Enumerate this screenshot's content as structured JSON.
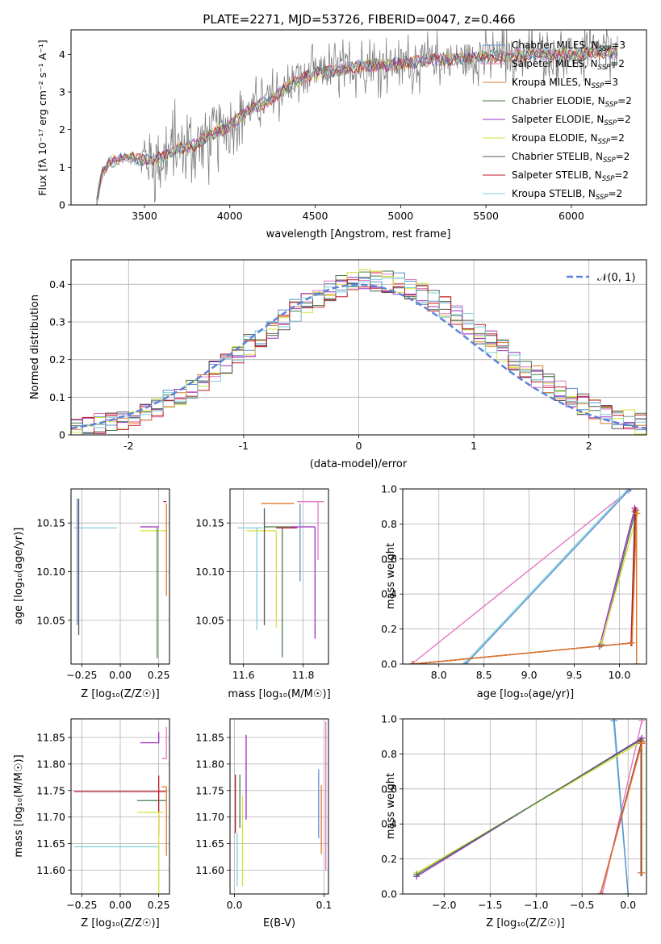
{
  "figure_title": "PLATE=2271, MJD=53726, FIBERID=0047, z=0.466",
  "chart_data": [
    {
      "id": "spectrum",
      "type": "line",
      "title": "PLATE=2271, MJD=53726, FIBERID=0047, z=0.466",
      "xlabel": "wavelength [Angstrom, rest frame]",
      "ylabel": "Flux [fλ 10⁻¹⁷ erg cm⁻² s⁻¹ A⁻¹]",
      "xlim": [
        3070,
        6440
      ],
      "ylim": [
        0,
        4.65
      ],
      "xticks": [
        3500,
        4000,
        4500,
        5000,
        5500,
        6000
      ],
      "yticks": [
        0,
        1,
        2,
        3,
        4
      ],
      "grid": false,
      "legend_position": "top-right",
      "data_series": {
        "name": "data",
        "color": "#808080",
        "x_start": 3220,
        "x_end": 6270,
        "points": 720
      },
      "model_series": [
        {
          "name": "Chabrier MILES, N_SSP=3",
          "color": "#5f8fd0"
        },
        {
          "name": "Salpeter MILES, N_SSP=2",
          "color": "#e377c2"
        },
        {
          "name": "Kroupa MILES, N_SSP=3",
          "color": "#e07a2b"
        },
        {
          "name": "Chabrier ELODIE, N_SSP=2",
          "color": "#4a7a4a"
        },
        {
          "name": "Salpeter ELODIE, N_SSP=2",
          "color": "#9b2fbf"
        },
        {
          "name": "Kroupa ELODIE, N_SSP=2",
          "color": "#d8e040"
        },
        {
          "name": "Chabrier STELIB, N_SSP=2",
          "color": "#555555"
        },
        {
          "name": "Salpeter STELIB, N_SSP=2",
          "color": "#c0182a"
        },
        {
          "name": "Kroupa STELIB, N_SSP=2",
          "color": "#7ecfd8"
        }
      ],
      "continuum": {
        "x": [
          3220,
          3250,
          3300,
          3400,
          3500,
          3600,
          3700,
          3800,
          3900,
          4000,
          4100,
          4200,
          4300,
          4400,
          4500,
          4600,
          4700,
          4800,
          4900,
          5000,
          5200,
          5400,
          5600,
          5800,
          6000,
          6200,
          6270
        ],
        "y": [
          0.0,
          0.85,
          1.15,
          1.25,
          1.2,
          1.25,
          1.5,
          1.6,
          1.9,
          2.1,
          2.5,
          2.7,
          3.0,
          3.3,
          3.5,
          3.55,
          3.65,
          3.7,
          3.7,
          3.75,
          3.85,
          3.9,
          3.95,
          4.0,
          4.0,
          4.05,
          4.05
        ]
      }
    },
    {
      "id": "residuals",
      "type": "histogram",
      "xlabel": "(data-model)/error",
      "ylabel": "Normed distribution",
      "xlim": [
        -2.5,
        2.5
      ],
      "ylim": [
        0,
        0.465
      ],
      "xticks": [
        -2,
        -1,
        0,
        1,
        2
      ],
      "yticks": [
        0.0,
        0.1,
        0.2,
        0.3,
        0.4
      ],
      "grid": true,
      "legend_position": "top-right",
      "gaussian": {
        "label": "𝒩(0, 1)",
        "mu": 0,
        "sigma": 1,
        "color": "#5b83d8"
      },
      "bin_width": 0.1,
      "envelope_sigma": 1.02,
      "envelope_shift": 0.12,
      "colors": [
        "#5f8fd0",
        "#e377c2",
        "#e07a2b",
        "#4a7a4a",
        "#9b2fbf",
        "#d8e040",
        "#555555",
        "#c0182a",
        "#7ecfd8"
      ]
    },
    {
      "id": "age-vs-Z",
      "type": "errorbar",
      "xlabel": "Z [log₁₀(Z/Z☉)]",
      "ylabel": "age  [log₁₀(age/yr)]",
      "xlim": [
        -0.32,
        0.32
      ],
      "ylim": [
        10.005,
        10.185
      ],
      "xticks": [
        -0.25,
        0.0,
        0.25
      ],
      "xtick_labels": [
        "−0.25",
        "0.00",
        "0.25"
      ],
      "yticks": [
        10.05,
        10.1,
        10.15
      ],
      "ytick_labels": [
        "10.05",
        "10.10",
        "10.15"
      ],
      "grid": true,
      "points": [
        {
          "color": "#7ecfd8",
          "x": -0.02,
          "xerr": [
            0.28,
            0.0
          ],
          "y": 10.145,
          "yerr": [
            0.0,
            0.0
          ]
        },
        {
          "color": "#5f8fd0",
          "x": -0.28,
          "xerr": [
            0.0,
            0.0
          ],
          "y": 10.145,
          "yerr": [
            0.1,
            0.03
          ]
        },
        {
          "color": "#555555",
          "x": -0.27,
          "xerr": [
            0.0,
            0.0
          ],
          "y": 10.145,
          "yerr": [
            0.11,
            0.03
          ]
        },
        {
          "color": "#9b2fbf",
          "x": 0.25,
          "xerr": [
            0.12,
            0.0
          ],
          "y": 10.146,
          "yerr": [
            0.0,
            0.0
          ]
        },
        {
          "color": "#d8e040",
          "x": 0.25,
          "xerr": [
            0.12,
            0.05
          ],
          "y": 10.142,
          "yerr": [
            0.0,
            0.0
          ]
        },
        {
          "color": "#4a7a4a",
          "x": 0.24,
          "xerr": [
            0.0,
            0.0
          ],
          "y": 10.145,
          "yerr": [
            0.134,
            0.0
          ]
        },
        {
          "color": "#e377c2",
          "x": 0.3,
          "xerr": [
            0.0,
            0.0
          ],
          "y": 10.17,
          "yerr": [
            0.0,
            0.0
          ]
        },
        {
          "color": "#e07a2b",
          "x": 0.3,
          "xerr": [
            0.0,
            0.0
          ],
          "y": 10.17,
          "yerr": [
            0.095,
            0.0
          ]
        },
        {
          "color": "#c0182a",
          "x": 0.28,
          "xerr": [
            0.0,
            0.02
          ],
          "y": 10.172,
          "yerr": [
            0.0,
            0.0
          ]
        }
      ]
    },
    {
      "id": "age-vs-mass",
      "type": "errorbar",
      "xlabel": "mass [log₁₀(M/M☉)]",
      "ylabel": "",
      "xlim": [
        11.555,
        11.885
      ],
      "ylim": [
        10.005,
        10.185
      ],
      "xticks": [
        11.6,
        11.8
      ],
      "xtick_labels": [
        "11.6",
        "11.8"
      ],
      "yticks": [
        10.05,
        10.1,
        10.15
      ],
      "ytick_labels": [
        "10.05",
        "10.10",
        "10.15"
      ],
      "grid": true,
      "points": [
        {
          "color": "#7ecfd8",
          "x": 11.645,
          "xerr": [
            0.065,
            0.02
          ],
          "y": 10.145,
          "yerr": [
            0.105,
            0.0
          ]
        },
        {
          "color": "#4a7a4a",
          "x": 11.73,
          "xerr": [
            0.06,
            0.04
          ],
          "y": 10.146,
          "yerr": [
            0.134,
            0.0
          ]
        },
        {
          "color": "#c0182a",
          "x": 11.75,
          "xerr": [
            0.04,
            0.03
          ],
          "y": 10.145,
          "yerr": [
            0.0,
            0.0
          ]
        },
        {
          "color": "#9b2fbf",
          "x": 11.84,
          "xerr": [
            0.08,
            0.0
          ],
          "y": 10.146,
          "yerr": [
            0.115,
            0.0
          ]
        },
        {
          "color": "#d8e040",
          "x": 11.71,
          "xerr": [
            0.1,
            0.0
          ],
          "y": 10.142,
          "yerr": [
            0.1,
            0.0
          ]
        },
        {
          "color": "#e07a2b",
          "x": 11.72,
          "xerr": [
            0.06,
            0.05
          ],
          "y": 10.17,
          "yerr": [
            0.0,
            0.0
          ]
        },
        {
          "color": "#e377c2",
          "x": 11.85,
          "xerr": [
            0.07,
            0.02
          ],
          "y": 10.172,
          "yerr": [
            0.06,
            0.0
          ]
        },
        {
          "color": "#5f8fd0",
          "x": 11.79,
          "xerr": [
            0.0,
            0.0
          ],
          "y": 10.17,
          "yerr": [
            0.08,
            0.0
          ]
        },
        {
          "color": "#555555",
          "x": 11.67,
          "xerr": [
            0.0,
            0.0
          ],
          "y": 10.145,
          "yerr": [
            0.1,
            0.02
          ]
        }
      ]
    },
    {
      "id": "weight-vs-age",
      "type": "line",
      "xlabel": "age  [log₁₀(age/yr)]",
      "ylabel": "mass weight",
      "xlim": [
        7.6,
        10.3
      ],
      "ylim": [
        0,
        1
      ],
      "xticks": [
        8.0,
        8.5,
        9.0,
        9.5,
        10.0
      ],
      "xtick_labels": [
        "8.0",
        "8.5",
        "9.0",
        "9.5",
        "10.0"
      ],
      "yticks": [
        0.0,
        0.2,
        0.4,
        0.6,
        0.8,
        1.0
      ],
      "ytick_labels": [
        "0.0",
        "0.2",
        "0.4",
        "0.6",
        "0.8",
        "1.0"
      ],
      "grid": true,
      "series": [
        {
          "color": "#e377c2",
          "x": [
            7.7,
            10.1
          ],
          "y": [
            0.0,
            0.99
          ]
        },
        {
          "color": "#7ecfd8",
          "x": [
            8.28,
            10.1
          ],
          "y": [
            0.0,
            1.0
          ]
        },
        {
          "color": "#5f8fd0",
          "x": [
            8.3,
            10.12
          ],
          "y": [
            0.0,
            1.0
          ]
        },
        {
          "color": "#4a7a4a",
          "x": [
            9.8,
            10.18
          ],
          "y": [
            0.11,
            0.88
          ]
        },
        {
          "color": "#9b2fbf",
          "x": [
            9.78,
            10.17
          ],
          "y": [
            0.1,
            0.89
          ]
        },
        {
          "color": "#d8e040",
          "x": [
            9.8,
            10.2
          ],
          "y": [
            0.12,
            0.86
          ]
        },
        {
          "color": "#555555",
          "x": [
            7.72,
            10.13,
            10.17
          ],
          "y": [
            0.0,
            0.12,
            0.87
          ]
        },
        {
          "color": "#c0182a",
          "x": [
            7.72,
            10.13,
            10.18
          ],
          "y": [
            0.0,
            0.12,
            0.88
          ]
        },
        {
          "color": "#e07a2b",
          "x": [
            7.72,
            10.14,
            10.19,
            10.19
          ],
          "y": [
            0.0,
            0.12,
            0.86,
            0.0
          ]
        }
      ]
    },
    {
      "id": "mass-vs-Z",
      "type": "errorbar",
      "xlabel": "Z [log₁₀(Z/Z☉)]",
      "ylabel": "mass [log₁₀(M/M☉)]",
      "xlim": [
        -0.32,
        0.32
      ],
      "ylim": [
        11.555,
        11.885
      ],
      "xticks": [
        -0.25,
        0.0,
        0.25
      ],
      "xtick_labels": [
        "−0.25",
        "0.00",
        "0.25"
      ],
      "yticks": [
        11.6,
        11.65,
        11.7,
        11.75,
        11.8,
        11.85
      ],
      "ytick_labels": [
        "11.60",
        "11.65",
        "11.70",
        "11.75",
        "11.80",
        "11.85"
      ],
      "grid": true,
      "points": [
        {
          "color": "#c0182a",
          "x": 0.25,
          "xerr": [
            0.55,
            0.05
          ],
          "y": 11.748,
          "yerr": [
            0.08,
            0.03
          ]
        },
        {
          "color": "#7ecfd8",
          "x": 0.25,
          "xerr": [
            0.55,
            0.0
          ],
          "y": 11.644,
          "yerr": [
            0.07,
            0.0
          ]
        },
        {
          "color": "#4a7a4a",
          "x": 0.25,
          "xerr": [
            0.14,
            0.05
          ],
          "y": 11.731,
          "yerr": [
            0.0,
            0.0
          ]
        },
        {
          "color": "#d8e040",
          "x": 0.25,
          "xerr": [
            0.14,
            0.03
          ],
          "y": 11.709,
          "yerr": [
            0.16,
            0.0
          ]
        },
        {
          "color": "#9b2fbf",
          "x": 0.25,
          "xerr": [
            0.12,
            0.0
          ],
          "y": 11.84,
          "yerr": [
            0.0,
            0.02
          ]
        },
        {
          "color": "#e377c2",
          "x": 0.3,
          "xerr": [
            0.03,
            0.0
          ],
          "y": 11.81,
          "yerr": [
            0.0,
            0.06
          ]
        },
        {
          "color": "#e07a2b",
          "x": 0.3,
          "xerr": [
            0.03,
            0.0
          ],
          "y": 11.757,
          "yerr": [
            0.13,
            0.0
          ]
        },
        {
          "color": "#5f8fd0",
          "x": 0.28,
          "xerr": [
            0.0,
            0.0
          ],
          "y": 11.79,
          "yerr": [
            0.0,
            0.0
          ]
        }
      ]
    },
    {
      "id": "mass-vs-ebv",
      "type": "errorbar",
      "xlabel": "E(B-V)",
      "ylabel": "",
      "xlim": [
        -0.005,
        0.105
      ],
      "ylim": [
        11.555,
        11.885
      ],
      "xticks": [
        0.0,
        0.1
      ],
      "xtick_labels": [
        "0.0",
        "0.1"
      ],
      "yticks": [
        11.6,
        11.65,
        11.7,
        11.75,
        11.8,
        11.85
      ],
      "ytick_labels": [
        "11.60",
        "11.65",
        "11.70",
        "11.75",
        "11.80",
        "11.85"
      ],
      "grid": true,
      "points": [
        {
          "color": "#c0182a",
          "x": 0.001,
          "xerr": [
            0.0,
            0.0
          ],
          "y": 11.72,
          "yerr": [
            0.05,
            0.06
          ]
        },
        {
          "color": "#7ecfd8",
          "x": 0.003,
          "xerr": [
            0.0,
            0.0
          ],
          "y": 11.64,
          "yerr": [
            0.07,
            0.03
          ]
        },
        {
          "color": "#4a7a4a",
          "x": 0.006,
          "xerr": [
            0.0,
            0.0
          ],
          "y": 11.73,
          "yerr": [
            0.05,
            0.05
          ]
        },
        {
          "color": "#d8e040",
          "x": 0.009,
          "xerr": [
            0.0,
            0.0
          ],
          "y": 11.69,
          "yerr": [
            0.12,
            0.05
          ]
        },
        {
          "color": "#9b2fbf",
          "x": 0.013,
          "xerr": [
            0.0,
            0.0
          ],
          "y": 11.775,
          "yerr": [
            0.08,
            0.08
          ]
        },
        {
          "color": "#5f8fd0",
          "x": 0.094,
          "xerr": [
            0.0,
            0.0
          ],
          "y": 11.72,
          "yerr": [
            0.06,
            0.07
          ]
        },
        {
          "color": "#e07a2b",
          "x": 0.097,
          "xerr": [
            0.0,
            0.0
          ],
          "y": 11.67,
          "yerr": [
            0.04,
            0.09
          ]
        },
        {
          "color": "#e377c2",
          "x": 0.102,
          "xerr": [
            0.0,
            0.0
          ],
          "y": 11.75,
          "yerr": [
            0.15,
            0.13
          ]
        }
      ]
    },
    {
      "id": "weight-vs-Z",
      "type": "line",
      "xlabel": "Z [log₁₀(Z/Z☉)]",
      "ylabel": "mass weight",
      "xlim": [
        -2.45,
        0.2
      ],
      "ylim": [
        0,
        1
      ],
      "xticks": [
        -2.0,
        -1.5,
        -1.0,
        -0.5,
        0.0
      ],
      "xtick_labels": [
        "−2.0",
        "−1.5",
        "−1.0",
        "−0.5",
        "0.0"
      ],
      "yticks": [
        0.0,
        0.2,
        0.4,
        0.6,
        0.8,
        1.0
      ],
      "ytick_labels": [
        "0.0",
        "0.2",
        "0.4",
        "0.6",
        "0.8",
        "1.0"
      ],
      "grid": true,
      "series": [
        {
          "color": "#e377c2",
          "x": [
            -0.28,
            0.15
          ],
          "y": [
            0.0,
            0.99
          ]
        },
        {
          "color": "#7ecfd8",
          "x": [
            -0.16,
            -0.0
          ],
          "y": [
            0.99,
            0.0
          ]
        },
        {
          "color": "#5f8fd0",
          "x": [
            -0.15,
            0.0
          ],
          "y": [
            0.99,
            0.0
          ]
        },
        {
          "color": "#9b2fbf",
          "x": [
            -2.3,
            0.15
          ],
          "y": [
            0.1,
            0.89
          ]
        },
        {
          "color": "#d8e040",
          "x": [
            -2.3,
            0.15
          ],
          "y": [
            0.12,
            0.87
          ]
        },
        {
          "color": "#4a7a4a",
          "x": [
            -2.3,
            0.14
          ],
          "y": [
            0.11,
            0.88
          ]
        },
        {
          "color": "#555555",
          "x": [
            -0.3,
            0.14,
            0.14
          ],
          "y": [
            0.0,
            0.86,
            0.12
          ]
        },
        {
          "color": "#c0182a",
          "x": [
            -0.3,
            0.15,
            0.15
          ],
          "y": [
            0.0,
            0.87,
            0.12
          ]
        },
        {
          "color": "#e07a2b",
          "x": [
            -0.3,
            0.15,
            0.15
          ],
          "y": [
            0.0,
            0.86,
            0.12
          ]
        }
      ]
    }
  ]
}
